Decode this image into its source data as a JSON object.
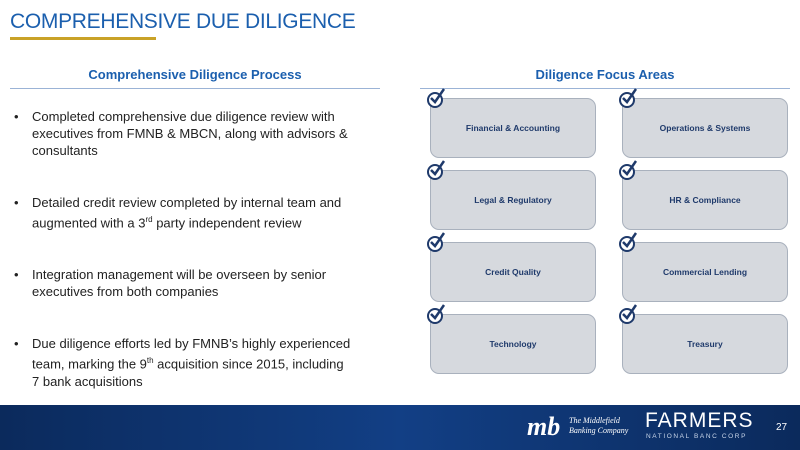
{
  "title": "COMPREHENSIVE DUE DILIGENCE",
  "left": {
    "heading": "Comprehensive Diligence Process",
    "bullets": [
      {
        "text": "Completed comprehensive due diligence review with executives from FMNB & MBCN, along with advisors & consultants"
      },
      {
        "pre": "Detailed credit review completed by internal team and augmented with a 3",
        "sup": "rd",
        "post": " party independent review"
      },
      {
        "text": "Integration management will be overseen by senior executives from both companies"
      },
      {
        "pre": "Due diligence efforts led by FMNB’s highly experienced team, marking the 9",
        "sup": "th",
        "post": " acquisition since 2015, including 7 bank acquisitions"
      }
    ]
  },
  "right": {
    "heading": "Diligence Focus Areas",
    "areas": [
      "Financial & Accounting",
      "Operations & Systems",
      "Legal & Regulatory",
      "HR & Compliance",
      "Credit Quality",
      "Commercial Lending",
      "Technology",
      "Treasury"
    ],
    "icon": "check-circle-icon"
  },
  "footer": {
    "logo1": "mb",
    "logo1_text1": "The Middlefield",
    "logo1_text2": "Banking Company",
    "logo2": "FARMERS",
    "logo2_sub": "NATIONAL BANC CORP",
    "page": "27"
  },
  "colors": {
    "accent": "#1b5fae",
    "gold": "#c9a227",
    "navy": "#0b2a5c"
  }
}
